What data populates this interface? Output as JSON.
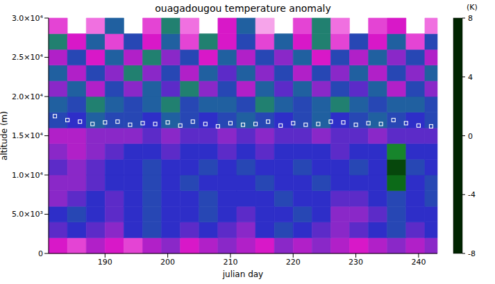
{
  "chart_data": {
    "type": "heatmap",
    "title": "ouagadougou temperature anomaly",
    "x_label": "julian day",
    "y_label": "altitude (m)",
    "xlim": [
      181,
      243
    ],
    "xticks": [
      190,
      200,
      210,
      220,
      230,
      240
    ],
    "ylim": [
      0,
      30000
    ],
    "yticks": [
      0,
      {
        "value": 5000,
        "label": "5.0×10³"
      },
      {
        "value": 10000,
        "label": "1.0×10⁴"
      },
      {
        "value": 15000,
        "label": "1.5×10⁴"
      },
      {
        "value": 20000,
        "label": "2.0×10⁴"
      },
      {
        "value": 25000,
        "label": "2.5×10⁴"
      },
      {
        "value": 30000,
        "label": "3.0×10⁴"
      }
    ],
    "x_bins": [
      181,
      184,
      187,
      190,
      193,
      196,
      199,
      202,
      205,
      208,
      211,
      214,
      217,
      220,
      223,
      226,
      229,
      232,
      235,
      238,
      241,
      243
    ],
    "y_bins": [
      0,
      2000,
      4000,
      6000,
      8000,
      10000,
      12000,
      14000,
      16000,
      18000,
      20000,
      22000,
      24000,
      26000,
      28000,
      30000
    ],
    "cells": [
      [
        4,
        5,
        3,
        4,
        5,
        3,
        2,
        4,
        3,
        2,
        3,
        4,
        2,
        3,
        2,
        3,
        4,
        3,
        2,
        3,
        2
      ],
      [
        1,
        0,
        1,
        2,
        0,
        -1,
        0,
        1,
        0,
        1,
        2,
        0,
        -1,
        0,
        1,
        2,
        1,
        0,
        -1,
        1,
        0
      ],
      [
        0,
        -1,
        0,
        1,
        0,
        -1,
        0,
        0,
        -1,
        0,
        1,
        0,
        0,
        -1,
        0,
        2,
        2,
        1,
        -1,
        0,
        0
      ],
      [
        2,
        1,
        0,
        1,
        0,
        -1,
        0,
        0,
        -1,
        0,
        0,
        0,
        -1,
        0,
        0,
        1,
        1,
        0,
        -1,
        0,
        -1
      ],
      [
        2,
        2,
        1,
        0,
        0,
        -1,
        0,
        -1,
        0,
        0,
        0,
        -1,
        0,
        0,
        -1,
        0,
        0,
        0,
        -6,
        0,
        -1
      ],
      [
        1,
        2,
        1,
        0,
        0,
        -1,
        0,
        0,
        -1,
        0,
        -1,
        0,
        0,
        -1,
        0,
        0,
        -1,
        0,
        -7,
        -1,
        0
      ],
      [
        2,
        3,
        2,
        1,
        0,
        0,
        1,
        0,
        0,
        1,
        0,
        1,
        0,
        0,
        0,
        1,
        0,
        0,
        -5,
        0,
        0
      ],
      [
        3,
        3,
        2,
        2,
        2,
        1,
        2,
        1,
        1,
        2,
        1,
        2,
        1,
        1,
        2,
        1,
        1,
        2,
        1,
        1,
        1
      ],
      [
        -1,
        0,
        -2,
        -1,
        -1,
        0,
        -2,
        -1,
        0,
        -1,
        -2,
        -1,
        0,
        -1,
        -2,
        0,
        -1,
        -2,
        -1,
        0,
        -1
      ],
      [
        -2,
        -1,
        -3,
        -2,
        -1,
        -2,
        -3,
        -1,
        -2,
        -2,
        -1,
        -3,
        -2,
        -1,
        -2,
        -3,
        -2,
        -1,
        -2,
        -2,
        -1
      ],
      [
        2,
        -2,
        3,
        -1,
        2,
        -2,
        1,
        -3,
        2,
        -1,
        3,
        -2,
        1,
        -2,
        2,
        -1,
        1,
        -2,
        3,
        -1,
        2
      ],
      [
        -2,
        3,
        -1,
        2,
        -3,
        2,
        -1,
        3,
        -2,
        1,
        -2,
        2,
        -1,
        3,
        -1,
        2,
        -2,
        3,
        -1,
        2,
        -2
      ],
      [
        3,
        -1,
        4,
        -2,
        3,
        -3,
        2,
        -1,
        4,
        -2,
        3,
        -1,
        2,
        -2,
        4,
        -1,
        3,
        -2,
        2,
        -1,
        3
      ],
      [
        -3,
        4,
        -2,
        5,
        -1,
        4,
        -2,
        5,
        -3,
        4,
        -1,
        5,
        -2,
        4,
        -3,
        5,
        -1,
        4,
        -2,
        5,
        -1
      ],
      [
        5,
        null,
        6,
        -2,
        null,
        5,
        -3,
        6,
        null,
        4,
        -2,
        7,
        null,
        5,
        -3,
        6,
        null,
        5,
        4,
        null,
        6
      ]
    ],
    "colorbar": {
      "label": "(K)",
      "range": [
        -8,
        8
      ],
      "ticks": [
        -8,
        -4,
        0,
        4,
        8
      ],
      "stops": [
        -8,
        -6,
        -4,
        -2,
        0,
        2,
        4,
        6,
        8
      ],
      "colors": [
        "#002400",
        "#0c6a18",
        "#22a040",
        "#2060a0",
        "#2e2ec8",
        "#8a28c8",
        "#d818c8",
        "#f070e0",
        "#fcd8f4"
      ]
    },
    "series": [
      {
        "type": "scatter",
        "marker": "square",
        "color": "#ffffff",
        "x": [
          182,
          184,
          186,
          188,
          190,
          192,
          194,
          196,
          198,
          200,
          202,
          204,
          206,
          208,
          210,
          212,
          214,
          216,
          218,
          220,
          222,
          224,
          226,
          228,
          230,
          232,
          234,
          236,
          238,
          240,
          242
        ],
        "y": [
          17500,
          17000,
          16800,
          16500,
          16700,
          16800,
          16400,
          16600,
          16500,
          16700,
          16300,
          16800,
          16500,
          16200,
          16600,
          16400,
          16500,
          16800,
          16300,
          16600,
          16400,
          16500,
          16800,
          16700,
          16400,
          16600,
          16500,
          17000,
          16600,
          16300,
          16200
        ]
      }
    ]
  }
}
